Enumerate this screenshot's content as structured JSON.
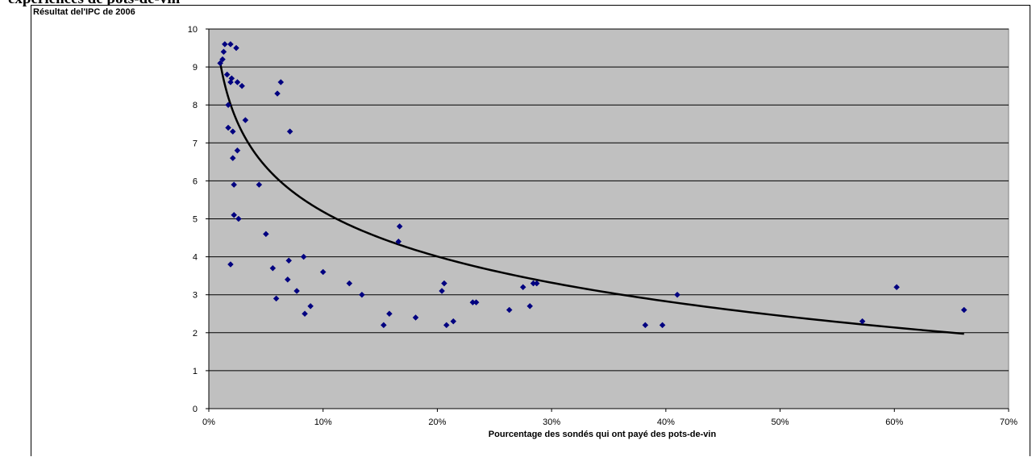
{
  "page": {
    "title_fragment": "expériences de pots-de-vin"
  },
  "chart_data": {
    "type": "scatter",
    "title": "",
    "ylabel": "Résultat del'IPC  de 2006",
    "xlabel": "Pourcentage des sondés qui ont payé des pots-de-vin",
    "xlim": [
      0,
      70
    ],
    "ylim": [
      0,
      10
    ],
    "x_ticks": [
      "0%",
      "10%",
      "20%",
      "30%",
      "40%",
      "50%",
      "60%",
      "70%"
    ],
    "y_ticks": [
      "0",
      "1",
      "2",
      "3",
      "4",
      "5",
      "6",
      "7",
      "8",
      "9",
      "10"
    ],
    "grid": "horizontal",
    "plot_background": "#c0c0c0",
    "marker_color": "#000080",
    "trend_color": "#000000",
    "trendline": {
      "type": "logarithmic",
      "a": 9.11,
      "b": -1.703
    },
    "points": [
      {
        "x": 1.0,
        "y": 9.1
      },
      {
        "x": 1.2,
        "y": 9.2
      },
      {
        "x": 1.3,
        "y": 9.4
      },
      {
        "x": 1.4,
        "y": 9.6
      },
      {
        "x": 1.9,
        "y": 9.6
      },
      {
        "x": 2.4,
        "y": 9.5
      },
      {
        "x": 1.6,
        "y": 8.8
      },
      {
        "x": 2.0,
        "y": 8.7
      },
      {
        "x": 1.9,
        "y": 8.6
      },
      {
        "x": 2.5,
        "y": 8.6
      },
      {
        "x": 2.9,
        "y": 8.5
      },
      {
        "x": 6.3,
        "y": 8.6
      },
      {
        "x": 6.0,
        "y": 8.3
      },
      {
        "x": 1.7,
        "y": 8.0
      },
      {
        "x": 3.2,
        "y": 7.6
      },
      {
        "x": 1.7,
        "y": 7.4
      },
      {
        "x": 2.1,
        "y": 7.3
      },
      {
        "x": 7.1,
        "y": 7.3
      },
      {
        "x": 2.5,
        "y": 6.8
      },
      {
        "x": 2.1,
        "y": 6.6
      },
      {
        "x": 2.2,
        "y": 5.9
      },
      {
        "x": 4.4,
        "y": 5.9
      },
      {
        "x": 2.2,
        "y": 5.1
      },
      {
        "x": 2.6,
        "y": 5.0
      },
      {
        "x": 5.0,
        "y": 4.6
      },
      {
        "x": 1.9,
        "y": 3.8
      },
      {
        "x": 5.6,
        "y": 3.7
      },
      {
        "x": 7.0,
        "y": 3.9
      },
      {
        "x": 8.3,
        "y": 4.0
      },
      {
        "x": 6.9,
        "y": 3.4
      },
      {
        "x": 7.7,
        "y": 3.1
      },
      {
        "x": 5.9,
        "y": 2.9
      },
      {
        "x": 8.9,
        "y": 2.7
      },
      {
        "x": 8.4,
        "y": 2.5
      },
      {
        "x": 10.0,
        "y": 3.6
      },
      {
        "x": 12.3,
        "y": 3.3
      },
      {
        "x": 13.4,
        "y": 3.0
      },
      {
        "x": 15.3,
        "y": 2.2
      },
      {
        "x": 15.8,
        "y": 2.5
      },
      {
        "x": 16.6,
        "y": 4.4
      },
      {
        "x": 16.7,
        "y": 4.8
      },
      {
        "x": 18.1,
        "y": 2.4
      },
      {
        "x": 20.4,
        "y": 3.1
      },
      {
        "x": 20.6,
        "y": 3.3
      },
      {
        "x": 20.8,
        "y": 2.2
      },
      {
        "x": 21.4,
        "y": 2.3
      },
      {
        "x": 23.1,
        "y": 2.8
      },
      {
        "x": 23.4,
        "y": 2.8
      },
      {
        "x": 26.3,
        "y": 2.6
      },
      {
        "x": 27.5,
        "y": 3.2
      },
      {
        "x": 28.1,
        "y": 2.7
      },
      {
        "x": 28.4,
        "y": 3.3
      },
      {
        "x": 28.7,
        "y": 3.3
      },
      {
        "x": 38.2,
        "y": 2.2
      },
      {
        "x": 39.7,
        "y": 2.2
      },
      {
        "x": 41.0,
        "y": 3.0
      },
      {
        "x": 57.2,
        "y": 2.3
      },
      {
        "x": 60.2,
        "y": 3.2
      },
      {
        "x": 66.1,
        "y": 2.6
      }
    ]
  }
}
